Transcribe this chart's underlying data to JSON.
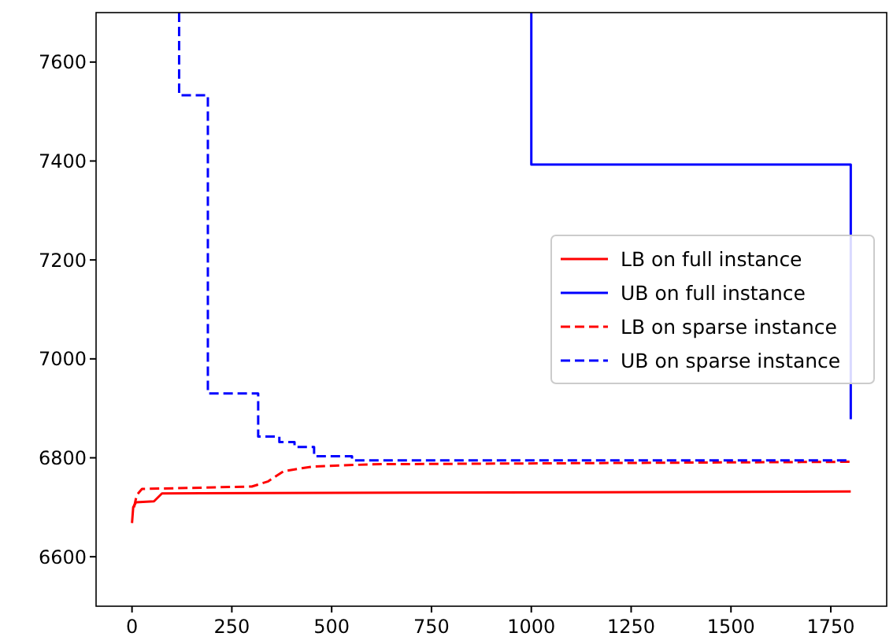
{
  "chart_data": {
    "type": "line",
    "xlim": [
      -90,
      1890
    ],
    "ylim": [
      6500,
      7700
    ],
    "xticks": [
      0,
      250,
      500,
      750,
      1000,
      1250,
      1500,
      1750
    ],
    "yticks": [
      6600,
      6800,
      7000,
      7200,
      7400,
      7600
    ],
    "grid": false,
    "legend": "center right",
    "series": [
      {
        "name": "LB on full instance",
        "color": "#ff0000",
        "line_style": "solid",
        "x": [
          0,
          3,
          10,
          55,
          75,
          1800
        ],
        "values": [
          6668,
          6700,
          6710,
          6712,
          6728,
          6732
        ]
      },
      {
        "name": "UB on full instance",
        "color": "#0000ff",
        "line_style": "solid",
        "type": "step",
        "x": [
          1000,
          1000,
          1800
        ],
        "values": [
          7700,
          7393,
          6878
        ]
      },
      {
        "name": "LB on sparse instance",
        "color": "#ff0000",
        "line_style": "dashed",
        "x": [
          5,
          12,
          25,
          300,
          340,
          380,
          450,
          600,
          1800
        ],
        "values": [
          6700,
          6725,
          6737,
          6742,
          6752,
          6773,
          6782,
          6787,
          6792
        ]
      },
      {
        "name": "UB on sparse instance",
        "color": "#0000ff",
        "line_style": "dashed",
        "type": "step",
        "x": [
          118,
          118,
          190,
          316,
          369,
          407,
          456,
          551,
          1800
        ],
        "values": [
          7700,
          7533,
          6930,
          6843,
          6832,
          6822,
          6803,
          6795,
          6795
        ]
      }
    ]
  }
}
